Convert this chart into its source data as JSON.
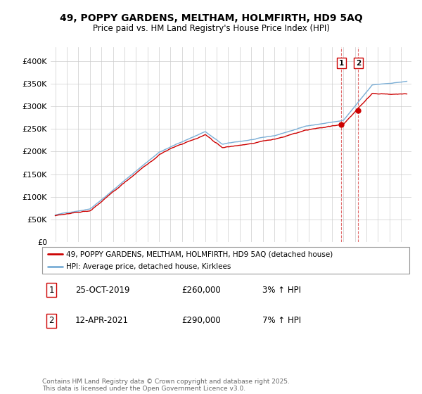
{
  "title": "49, POPPY GARDENS, MELTHAM, HOLMFIRTH, HD9 5AQ",
  "subtitle": "Price paid vs. HM Land Registry's House Price Index (HPI)",
  "ylim": [
    0,
    420000
  ],
  "yticks": [
    0,
    50000,
    100000,
    150000,
    200000,
    250000,
    300000,
    350000,
    400000
  ],
  "ytick_labels": [
    "£0",
    "£50K",
    "£100K",
    "£150K",
    "£200K",
    "£250K",
    "£300K",
    "£350K",
    "£400K"
  ],
  "legend1_label": "49, POPPY GARDENS, MELTHAM, HOLMFIRTH, HD9 5AQ (detached house)",
  "legend2_label": "HPI: Average price, detached house, Kirklees",
  "line1_color": "#cc0000",
  "line2_color": "#7aaed6",
  "marker_color": "#cc0000",
  "sale1_date": "25-OCT-2019",
  "sale1_price": "£260,000",
  "sale1_change": "3% ↑ HPI",
  "sale1_year": 2019.82,
  "sale1_value": 260000,
  "sale2_date": "12-APR-2021",
  "sale2_price": "£290,000",
  "sale2_change": "7% ↑ HPI",
  "sale2_year": 2021.28,
  "sale2_value": 290000,
  "footer": "Contains HM Land Registry data © Crown copyright and database right 2025.\nThis data is licensed under the Open Government Licence v3.0.",
  "background_color": "#ffffff",
  "grid_color": "#cccccc",
  "xlim_start": 1994.6,
  "xlim_end": 2025.9
}
